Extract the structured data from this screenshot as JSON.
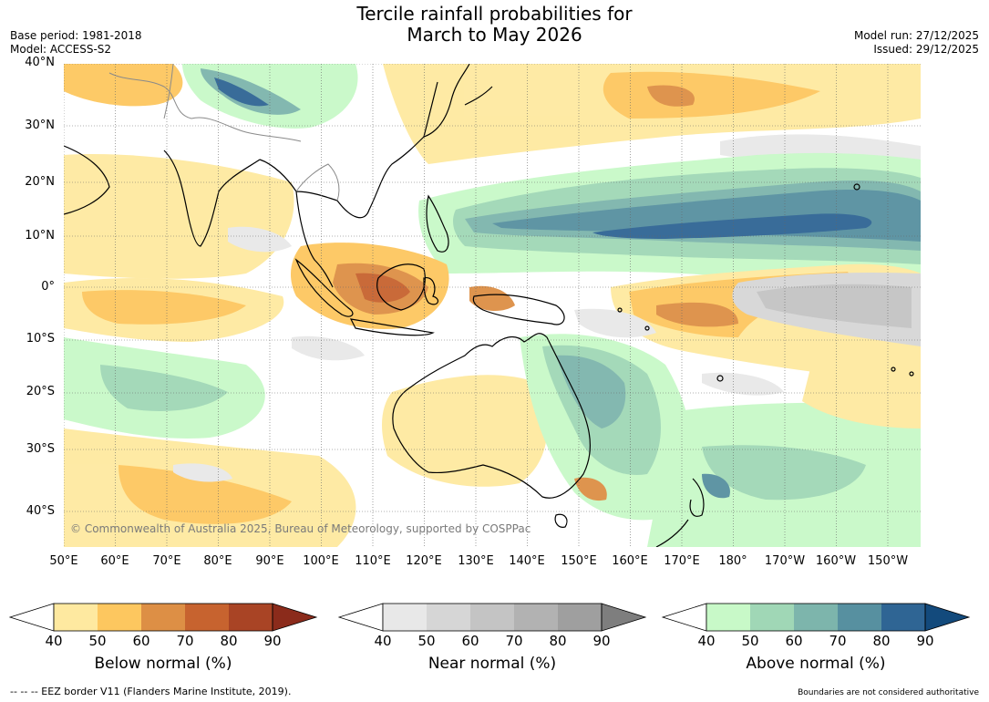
{
  "title_line1": "Tercile rainfall probabilities for",
  "title_line2": "March to May 2026",
  "meta_left": [
    "Base period: 1981-2018",
    "Model: ACCESS-S2"
  ],
  "meta_right": [
    "Model run: 27/12/2025",
    "Issued: 29/12/2025"
  ],
  "lat_labels": [
    "40°N",
    "30°N",
    "20°N",
    "10°N",
    "0°",
    "10°S",
    "20°S",
    "30°S",
    "40°S"
  ],
  "lon_labels": [
    "50°E",
    "60°E",
    "70°E",
    "80°E",
    "90°E",
    "100°E",
    "110°E",
    "120°E",
    "130°E",
    "140°E",
    "150°E",
    "160°E",
    "170°E",
    "180°",
    "170°W",
    "160°W",
    "150°W"
  ],
  "copyright": "© Commonwealth of Australia 2025, Bureau of Meteorology, supported by COSPPac",
  "colorbars": [
    {
      "title": "Below normal (%)",
      "ticks": [
        "40",
        "50",
        "60",
        "70",
        "80",
        "90"
      ],
      "colors": [
        "#ffffff",
        "#fee9a0",
        "#fdc75f",
        "#dd8f45",
        "#c7632f",
        "#a94425",
        "#8b2b1b"
      ]
    },
    {
      "title": "Near normal (%)",
      "ticks": [
        "40",
        "50",
        "60",
        "70",
        "80",
        "90"
      ],
      "colors": [
        "#ffffff",
        "#e8e8e8",
        "#d6d6d6",
        "#c4c4c4",
        "#b2b2b2",
        "#9f9f9f",
        "#7e7e7e"
      ]
    },
    {
      "title": "Above normal (%)",
      "ticks": [
        "40",
        "50",
        "60",
        "70",
        "80",
        "90"
      ],
      "colors": [
        "#ffffff",
        "#c8f9c8",
        "#a0d7b6",
        "#7db5ac",
        "#5790a0",
        "#2f6594",
        "#134a7c"
      ]
    }
  ],
  "footer_left": "--  --  -- EEZ border V11 (Flanders Marine Institute, 2019).",
  "footer_right": "Boundaries are not considered authoritative"
}
